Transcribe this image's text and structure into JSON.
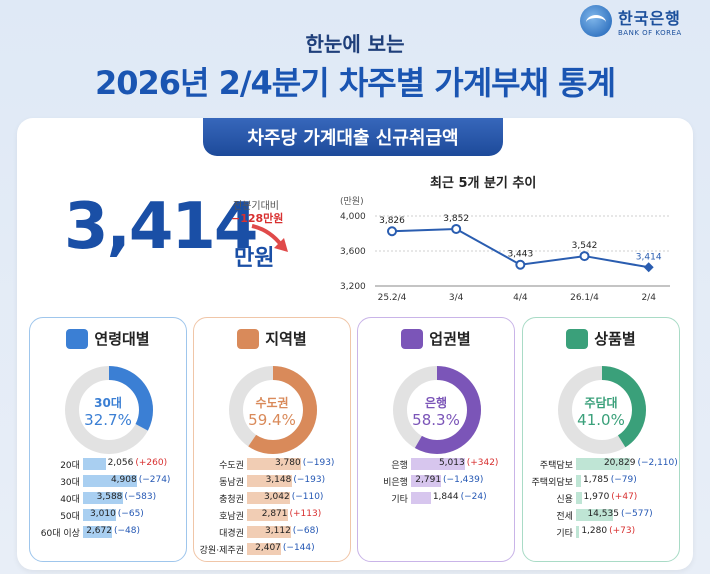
{
  "header": {
    "logo_ko": "한국은행",
    "logo_en": "BANK OF KOREA",
    "subtitle": "한눈에 보는",
    "title": "2026년 2/4분기 차주별 가계부채 통계"
  },
  "section_tab": "차주당 가계대출 신규취급액",
  "summary": {
    "value": "3,414",
    "unit": "만원",
    "change_label": "전분기대비",
    "change_value": "−128만원"
  },
  "trend": {
    "title": "최근 5개 분기 추이",
    "y_unit": "(만원)",
    "y_ticks": [
      "4,000",
      "3,600",
      "3,200"
    ]
  },
  "chart_data": {
    "type": "line",
    "title": "최근 5개 분기 추이",
    "ylabel": "(만원)",
    "categories": [
      "25.2/4",
      "3/4",
      "4/4",
      "26.1/4",
      "2/4"
    ],
    "values": [
      3826,
      3852,
      3443,
      3542,
      3414
    ],
    "value_labels": [
      "3,826",
      "3,852",
      "3,443",
      "3,542",
      "3,414"
    ],
    "ylim": [
      3200,
      4000
    ],
    "grid": true
  },
  "cards": [
    {
      "title": "연령대별",
      "color": "#3b7fd4",
      "bar_color": "#a9cff1",
      "border": "#9fc6ec",
      "donut_label": "30대",
      "donut_value": "32.7%",
      "share": 0.327,
      "rows": [
        {
          "label": "20대",
          "value": "2,056",
          "change": "(+260)",
          "dir": "up",
          "ratio": 0.41
        },
        {
          "label": "30대",
          "value": "4,908",
          "change": "(−274)",
          "dir": "dn",
          "ratio": 0.98
        },
        {
          "label": "40대",
          "value": "3,588",
          "change": "(−583)",
          "dir": "dn",
          "ratio": 0.72
        },
        {
          "label": "50대",
          "value": "3,010",
          "change": "(−65)",
          "dir": "dn",
          "ratio": 0.6
        },
        {
          "label": "60대 이상",
          "value": "2,672",
          "change": "(−48)",
          "dir": "dn",
          "ratio": 0.53
        }
      ]
    },
    {
      "title": "지역별",
      "color": "#d98a5a",
      "bar_color": "#f1cdb4",
      "border": "#f0c6a8",
      "donut_label": "수도권",
      "donut_value": "59.4%",
      "share": 0.594,
      "rows": [
        {
          "label": "수도권",
          "value": "3,780",
          "change": "(−193)",
          "dir": "dn",
          "ratio": 0.98
        },
        {
          "label": "동남권",
          "value": "3,148",
          "change": "(−193)",
          "dir": "dn",
          "ratio": 0.81
        },
        {
          "label": "충청권",
          "value": "3,042",
          "change": "(−110)",
          "dir": "dn",
          "ratio": 0.78
        },
        {
          "label": "호남권",
          "value": "2,871",
          "change": "(+113)",
          "dir": "up",
          "ratio": 0.74
        },
        {
          "label": "대경권",
          "value": "3,112",
          "change": "(−68)",
          "dir": "dn",
          "ratio": 0.8
        },
        {
          "label": "강원·제주권",
          "value": "2,407",
          "change": "(−144)",
          "dir": "dn",
          "ratio": 0.62
        }
      ]
    },
    {
      "title": "업권별",
      "color": "#7b55b8",
      "bar_color": "#d7c6ee",
      "border": "#c9b4e8",
      "donut_label": "은행",
      "donut_value": "58.3%",
      "share": 0.583,
      "rows": [
        {
          "label": "은행",
          "value": "5,013",
          "change": "(+342)",
          "dir": "up",
          "ratio": 0.98
        },
        {
          "label": "비은행",
          "value": "2,791",
          "change": "(−1,439)",
          "dir": "dn",
          "ratio": 0.55
        },
        {
          "label": "기타",
          "value": "1,844",
          "change": "(−24)",
          "dir": "dn",
          "ratio": 0.36
        }
      ]
    },
    {
      "title": "상품별",
      "color": "#3aa07a",
      "bar_color": "#bfe5d5",
      "border": "#a9dbc6",
      "donut_label": "주담대",
      "donut_value": "41.0%",
      "share": 0.41,
      "rows": [
        {
          "label": "주택담보",
          "value": "20,829",
          "change": "(−2,110)",
          "dir": "dn",
          "ratio": 0.98
        },
        {
          "label": "주택외담보",
          "value": "1,785",
          "change": "(−79)",
          "dir": "dn",
          "ratio": 0.09
        },
        {
          "label": "신용",
          "value": "1,970",
          "change": "(+47)",
          "dir": "up",
          "ratio": 0.1
        },
        {
          "label": "전세",
          "value": "14,535",
          "change": "(−577)",
          "dir": "dn",
          "ratio": 0.68
        },
        {
          "label": "기타",
          "value": "1,280",
          "change": "(+73)",
          "dir": "up",
          "ratio": 0.06
        }
      ]
    }
  ]
}
